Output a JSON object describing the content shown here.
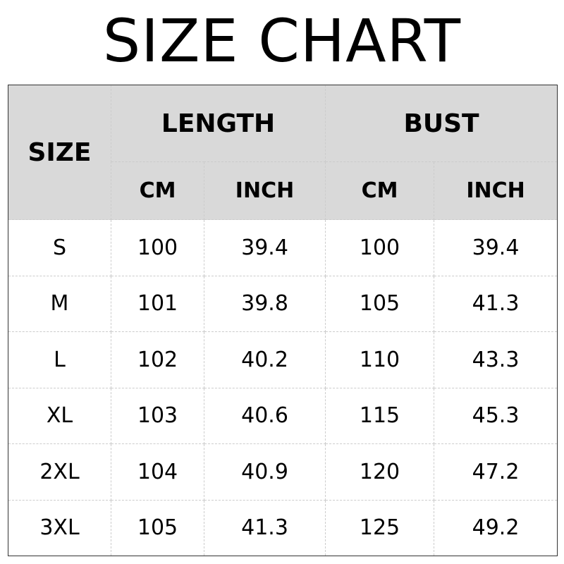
{
  "title": "SIZE CHART",
  "chart_data": {
    "type": "table",
    "title": "SIZE CHART",
    "header": {
      "size": "SIZE",
      "groups": [
        {
          "label": "LENGTH",
          "sub": [
            "CM",
            "INCH"
          ]
        },
        {
          "label": "BUST",
          "sub": [
            "CM",
            "INCH"
          ]
        }
      ]
    },
    "rows": [
      [
        "S",
        "100",
        "39.4",
        "100",
        "39.4"
      ],
      [
        "M",
        "101",
        "39.8",
        "105",
        "41.3"
      ],
      [
        "L",
        "102",
        "40.2",
        "110",
        "43.3"
      ],
      [
        "XL",
        "103",
        "40.6",
        "115",
        "45.3"
      ],
      [
        "2XL",
        "104",
        "40.9",
        "120",
        "47.2"
      ],
      [
        "3XL",
        "105",
        "41.3",
        "125",
        "49.2"
      ]
    ],
    "colors": {
      "header_bg": "#d9d9d9",
      "grid": "#cccccc"
    }
  }
}
